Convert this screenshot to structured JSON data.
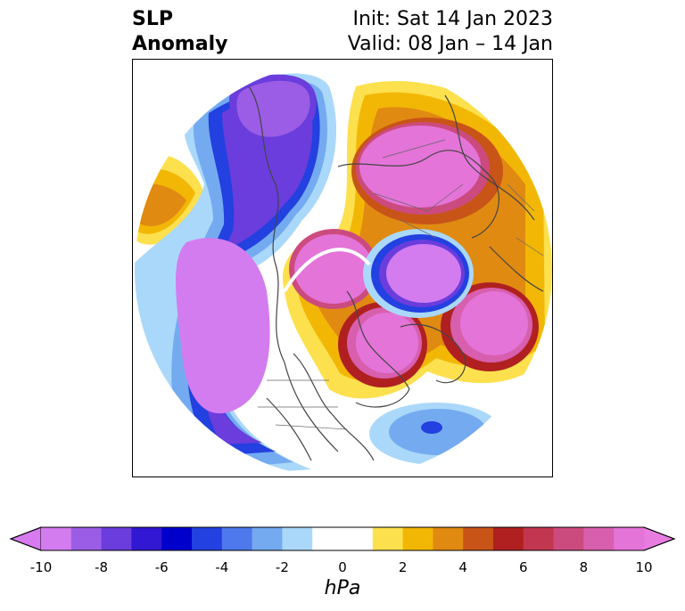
{
  "title": {
    "left_line1": "SLP",
    "left_line2": "Anomaly",
    "right_line1": "Init: Sat 14 Jan 2023",
    "right_line2": "Valid: 08 Jan – 14 Jan"
  },
  "colorbar": {
    "unit": "hPa",
    "ticks": [
      "-10",
      "-8",
      "-6",
      "-4",
      "-2",
      "0",
      "2",
      "4",
      "6",
      "8",
      "10"
    ],
    "colors": [
      "#d37cf0",
      "#9b5de5",
      "#6a3ddc",
      "#3218d2",
      "#0000cc",
      "#2340e0",
      "#4e79ec",
      "#74aaf0",
      "#aad8fa",
      "#ffffff",
      "#ffffff",
      "#fde04d",
      "#f2b705",
      "#e08a12",
      "#c85418",
      "#b02020",
      "#c2364f",
      "#cc4b7e",
      "#d85fae",
      "#e474d8"
    ],
    "extend_low_color": "#d87af0",
    "extend_high_color": "#e87de0"
  },
  "map": {
    "projection": "north-polar-stereographic",
    "field": "sea level pressure anomaly"
  }
}
